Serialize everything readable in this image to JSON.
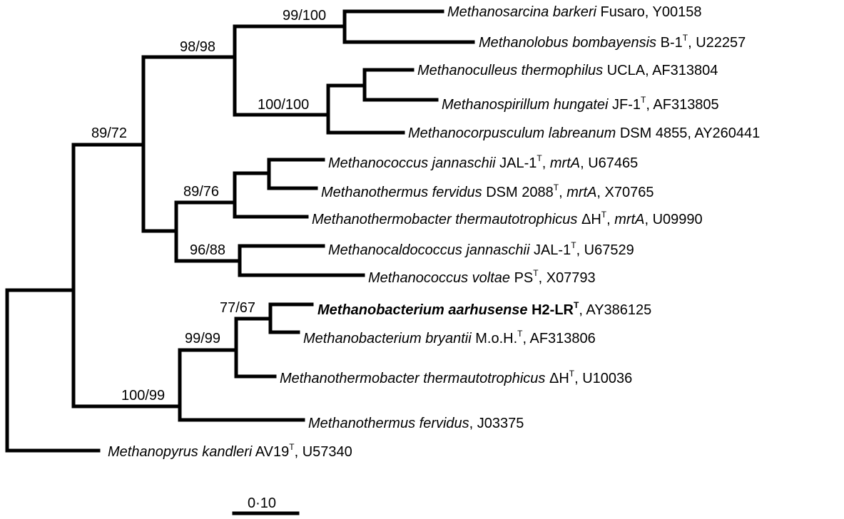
{
  "taxa": {
    "t1": {
      "genus": "Methanosarcina barkeri",
      "rest": " Fusaro, Y00158"
    },
    "t2": {
      "genus": "Methanolobus bombayensis",
      "rest": " B-1",
      "sup": "T",
      "tail": ", U22257"
    },
    "t3": {
      "genus": "Methanoculleus thermophilus",
      "rest": " UCLA, AF313804"
    },
    "t4": {
      "genus": "Methanospirillum hungatei",
      "rest": " JF-1",
      "sup": "T",
      "tail": ", AF313805"
    },
    "t5": {
      "genus": "Methanocorpusculum labreanum",
      "rest": " DSM 4855, AY260441"
    },
    "t6": {
      "genus": "Methanococcus jannaschii",
      "rest": "  JAL-1",
      "sup": "T",
      "tail": ", ",
      "gene": "mrtA",
      "tail2": ", U67465"
    },
    "t7": {
      "genus": "Methanothermus fervidus",
      "rest": "  DSM 2088",
      "sup": "T",
      "tail": ", ",
      "gene": "mrtA",
      "tail2": ", X70765"
    },
    "t8": {
      "genus": "Methanothermobacter thermautotrophicus",
      "rest": "  ΔH",
      "sup": "T",
      "tail": ", ",
      "gene": "mrtA",
      "tail2": ", U09990"
    },
    "t9": {
      "genus": "Methanocaldococcus jannaschii",
      "rest": " JAL-1",
      "sup": "T",
      "tail": ", U67529"
    },
    "t10": {
      "genus": "Methanococcus voltae",
      "rest": " PS",
      "sup": "T",
      "tail": ", X07793"
    },
    "t11": {
      "genus": "Methanobacterium aarhusense",
      "rest": " H2-LR",
      "sup": "T",
      "tail": ", AY386125"
    },
    "t12": {
      "genus": "Methanobacterium bryantii",
      "rest": " M.o.H.",
      "sup": "T",
      "tail": ", AF313806"
    },
    "t13": {
      "genus": "Methanothermobacter thermautotrophicus",
      "rest": "  ΔH",
      "sup": "T",
      "tail": ", U10036"
    },
    "t14": {
      "genus": "Methanothermus fervidus",
      "rest": ", J03375"
    },
    "t15": {
      "genus": "Methanopyrus kandleri",
      "rest": " AV19",
      "sup": "T",
      "tail": ", U57340"
    }
  },
  "bootstrap": {
    "b1": "99/100",
    "b2": "98/98",
    "b3": "100/100",
    "b4": "89/72",
    "b5": "89/76",
    "b6": "96/88",
    "b7": "77/67",
    "b8": "99/99",
    "b9": "100/99"
  },
  "scale": {
    "label": "0·10"
  }
}
